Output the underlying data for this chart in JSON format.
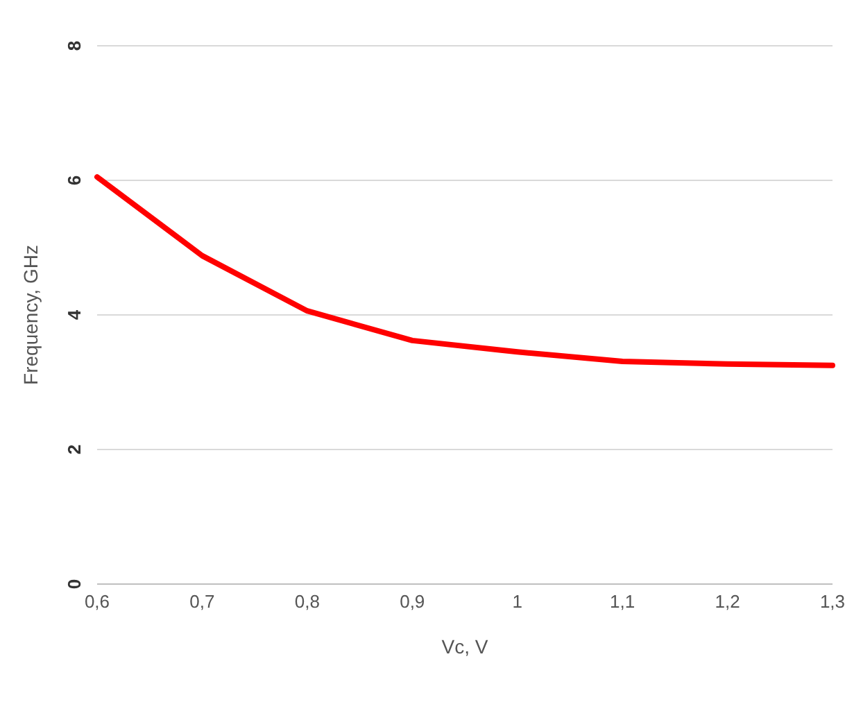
{
  "chart_data": {
    "type": "line",
    "xlabel": "Vc, V",
    "ylabel": "Frequency, GHz",
    "categories": [
      "0,6",
      "0,7",
      "0,8",
      "0,9",
      "1",
      "1,1",
      "1,2",
      "1,3"
    ],
    "series": [
      {
        "color": "#ff0000",
        "values": [
          6.05,
          4.88,
          4.06,
          3.62,
          3.45,
          3.31,
          3.27,
          3.25
        ]
      }
    ],
    "ylim": [
      0,
      8
    ],
    "yticks": [
      0,
      2,
      4,
      6,
      8
    ],
    "grid": "y",
    "marker": "none",
    "line_style": "solid",
    "legend": false
  }
}
